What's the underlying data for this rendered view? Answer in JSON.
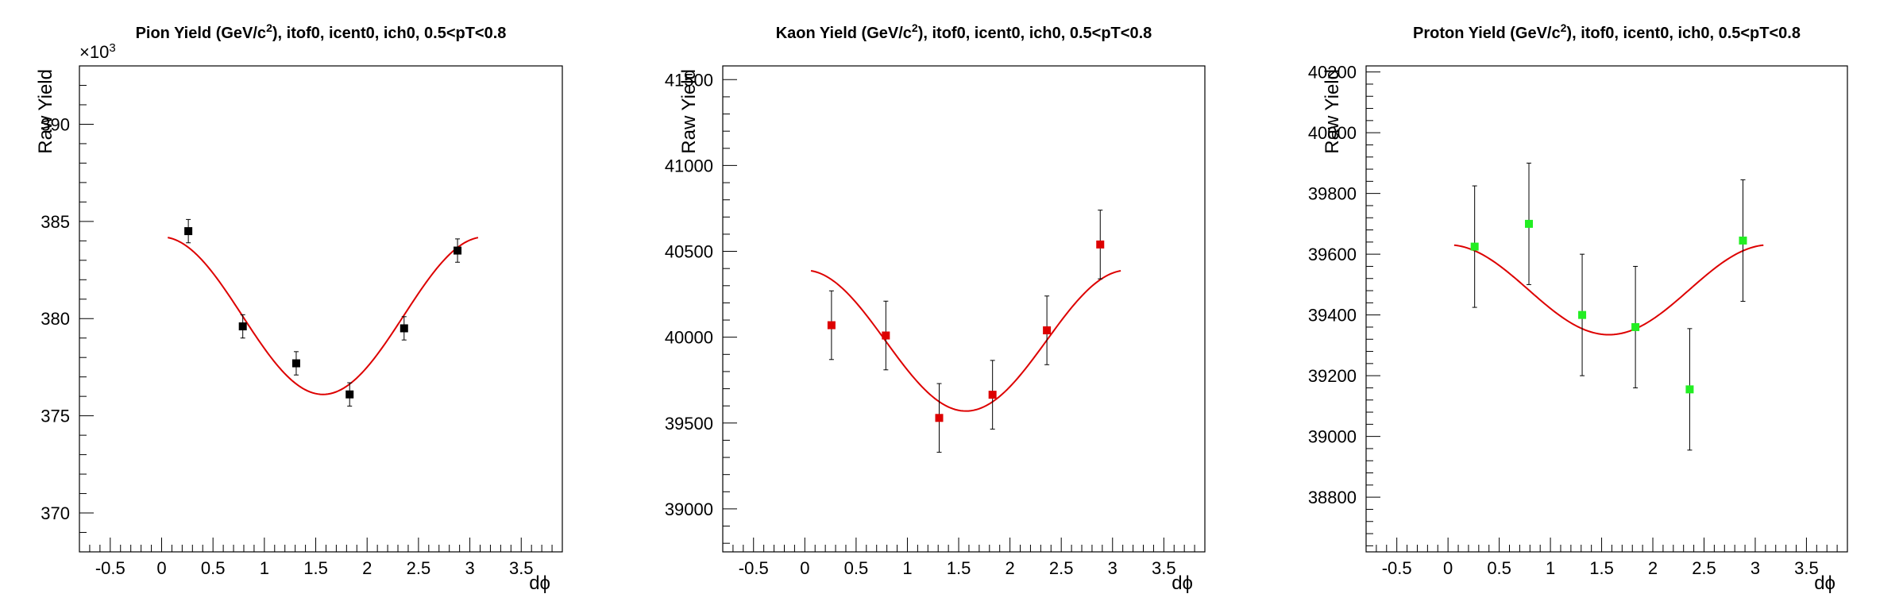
{
  "chart_data": [
    {
      "type": "scatter",
      "title_main": "Pion Yield (GeV/c",
      "title_sup": "2",
      "title_rest": "), itof0, icent0, ich0, 0.5<pT<0.8",
      "xlabel": "dϕ",
      "ylabel": "Raw Yield",
      "exponent_label": "×10",
      "exponent_sup": "3",
      "xlim": [
        -0.8,
        3.9
      ],
      "ylim": [
        368,
        393
      ],
      "xticks": [
        "-0.5",
        "0",
        "0.5",
        "1",
        "1.5",
        "2",
        "2.5",
        "3",
        "3.5"
      ],
      "yticks": [
        "370",
        "375",
        "380",
        "385",
        "390"
      ],
      "marker_color": "#000000",
      "fit_color": "#dd0000",
      "series": [
        {
          "x": [
            0.26,
            0.79,
            1.31,
            1.83,
            2.36,
            2.88
          ],
          "y": [
            384.5,
            379.6,
            377.7,
            376.1,
            379.5,
            383.5
          ],
          "err": [
            0.6,
            0.6,
            0.6,
            0.6,
            0.6,
            0.6
          ]
        }
      ],
      "fit": {
        "x_range": [
          0.06,
          3.08
        ],
        "mean": 380.15,
        "amplitude": 4.05
      }
    },
    {
      "type": "scatter",
      "title_main": "Kaon Yield (GeV/c",
      "title_sup": "2",
      "title_rest": "), itof0, icent0, ich0, 0.5<pT<0.8",
      "xlabel": "dϕ",
      "ylabel": "Raw Yield",
      "exponent_label": "",
      "exponent_sup": "",
      "xlim": [
        -0.8,
        3.9
      ],
      "ylim": [
        38750,
        41580
      ],
      "xticks": [
        "-0.5",
        "0",
        "0.5",
        "1",
        "1.5",
        "2",
        "2.5",
        "3",
        "3.5"
      ],
      "yticks": [
        "39000",
        "39500",
        "40000",
        "40500",
        "41000",
        "41500"
      ],
      "marker_color": "#dd0000",
      "fit_color": "#dd0000",
      "series": [
        {
          "x": [
            0.26,
            0.79,
            1.31,
            1.83,
            2.36,
            2.88
          ],
          "y": [
            40070,
            40010,
            39530,
            39665,
            40040,
            40540
          ],
          "err": [
            200,
            200,
            200,
            200,
            200,
            200
          ]
        }
      ],
      "fit": {
        "x_range": [
          0.06,
          3.08
        ],
        "mean": 39980,
        "amplitude": 410
      }
    },
    {
      "type": "scatter",
      "title_main": "Proton Yield (GeV/c",
      "title_sup": "2",
      "title_rest": "), itof0, icent0, ich0, 0.5<pT<0.8",
      "xlabel": "dϕ",
      "ylabel": "Raw Yield",
      "exponent_label": "",
      "exponent_sup": "",
      "xlim": [
        -0.8,
        3.9
      ],
      "ylim": [
        38620,
        40220
      ],
      "xticks": [
        "-0.5",
        "0",
        "0.5",
        "1",
        "1.5",
        "2",
        "2.5",
        "3",
        "3.5"
      ],
      "yticks": [
        "38800",
        "39000",
        "39200",
        "39400",
        "39600",
        "39800",
        "40000",
        "40200"
      ],
      "marker_color": "#22ee22",
      "fit_color": "#dd0000",
      "series": [
        {
          "x": [
            0.26,
            0.79,
            1.31,
            1.83,
            2.36,
            2.88
          ],
          "y": [
            39625,
            39700,
            39400,
            39360,
            39155,
            39645
          ],
          "err": [
            200,
            200,
            200,
            200,
            200,
            200
          ]
        }
      ],
      "fit": {
        "x_range": [
          0.06,
          3.08
        ],
        "mean": 39483,
        "amplitude": 148
      }
    }
  ]
}
